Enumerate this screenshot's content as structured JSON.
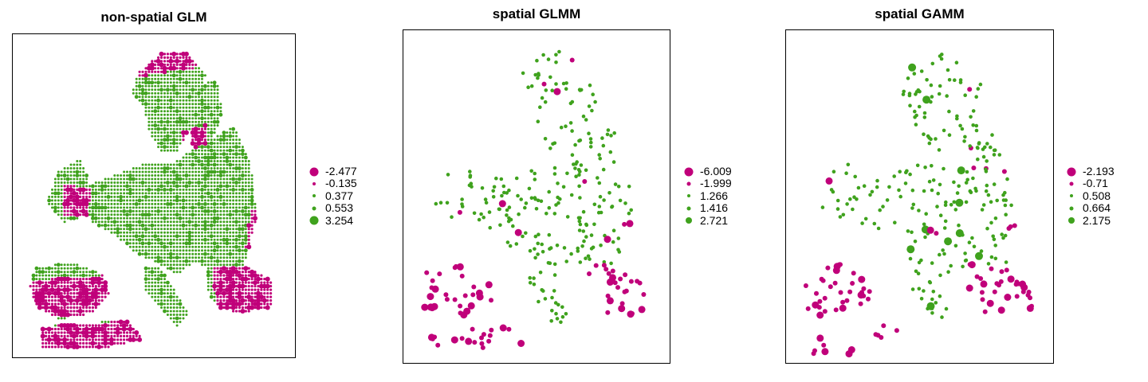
{
  "colors": {
    "negative": "#c0007a",
    "positive": "#3fa21d",
    "frame": "#000000"
  },
  "chart_data": [
    {
      "type": "scatter",
      "title": "non-spatial GLM",
      "legend": {
        "placement": "right",
        "entries": [
          {
            "label": "-2.477",
            "value": -2.477,
            "color": "negative"
          },
          {
            "label": "-0.135",
            "value": -0.135,
            "color": "negative"
          },
          {
            "label": "0.377",
            "value": 0.377,
            "color": "positive"
          },
          {
            "label": "0.553",
            "value": 0.553,
            "color": "positive"
          },
          {
            "label": "3.254",
            "value": 3.254,
            "color": "positive"
          }
        ]
      },
      "grid": false
    },
    {
      "type": "scatter",
      "title": "spatial GLMM",
      "legend": {
        "placement": "right",
        "entries": [
          {
            "label": "-6.009",
            "value": -6.009,
            "color": "negative"
          },
          {
            "label": "-1.999",
            "value": -1.999,
            "color": "negative"
          },
          {
            "label": "1.266",
            "value": 1.266,
            "color": "positive"
          },
          {
            "label": "1.416",
            "value": 1.416,
            "color": "positive"
          },
          {
            "label": "2.721",
            "value": 2.721,
            "color": "positive"
          }
        ]
      },
      "grid": false
    },
    {
      "type": "scatter",
      "title": "spatial GAMM",
      "legend": {
        "placement": "right",
        "entries": [
          {
            "label": "-2.193",
            "value": -2.193,
            "color": "negative"
          },
          {
            "label": "-0.71",
            "value": -0.71,
            "color": "negative"
          },
          {
            "label": "0.508",
            "value": 0.508,
            "color": "positive"
          },
          {
            "label": "0.664",
            "value": 0.664,
            "color": "positive"
          },
          {
            "label": "2.175",
            "value": 2.175,
            "color": "positive"
          }
        ]
      },
      "grid": false
    }
  ]
}
